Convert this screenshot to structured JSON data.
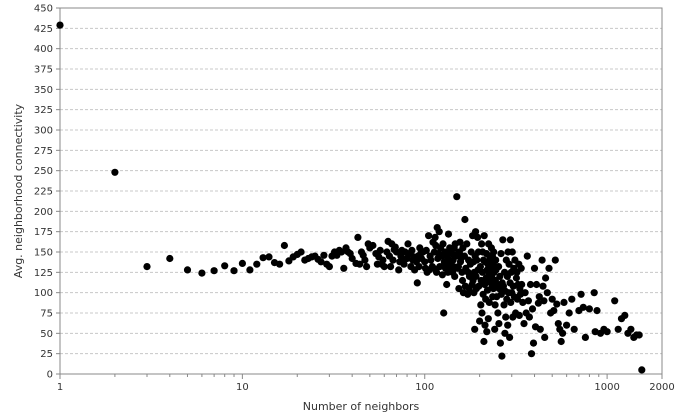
{
  "chart_data": {
    "type": "scatter",
    "title": "",
    "xlabel": "Number of neighbors",
    "ylabel": "Avg. neighborhood connectivity",
    "x_scale": "log",
    "xlim": [
      1,
      2000
    ],
    "ylim": [
      0,
      450
    ],
    "x_ticks": [
      1,
      10,
      100,
      1000,
      2000
    ],
    "y_ticks": [
      0,
      25,
      50,
      75,
      100,
      125,
      150,
      175,
      200,
      225,
      250,
      275,
      300,
      325,
      350,
      375,
      400,
      425,
      450
    ],
    "grid": "horizontal dashed",
    "legend": "none",
    "colors": {
      "point": "#000000",
      "grid": "#c8c8c8",
      "axis": "#888888",
      "background": "#ffffff"
    },
    "points": [
      [
        1,
        429
      ],
      [
        2,
        248
      ],
      [
        3,
        132
      ],
      [
        4,
        142
      ],
      [
        5,
        128
      ],
      [
        6,
        124
      ],
      [
        7,
        127
      ],
      [
        8,
        133
      ],
      [
        9,
        127
      ],
      [
        10,
        136
      ],
      [
        11,
        128
      ],
      [
        12,
        135
      ],
      [
        13,
        143
      ],
      [
        14,
        144
      ],
      [
        15,
        137
      ],
      [
        16,
        135
      ],
      [
        17,
        158
      ],
      [
        18,
        139
      ],
      [
        19,
        144
      ],
      [
        20,
        147
      ],
      [
        21,
        150
      ],
      [
        22,
        140
      ],
      [
        23,
        142
      ],
      [
        24,
        144
      ],
      [
        25,
        145
      ],
      [
        26,
        141
      ],
      [
        27,
        138
      ],
      [
        28,
        146
      ],
      [
        29,
        135
      ],
      [
        30,
        132
      ],
      [
        31,
        145
      ],
      [
        32,
        150
      ],
      [
        33,
        146
      ],
      [
        34,
        152
      ],
      [
        35,
        150
      ],
      [
        36,
        130
      ],
      [
        37,
        155
      ],
      [
        38,
        150
      ],
      [
        39,
        148
      ],
      [
        40,
        142
      ],
      [
        42,
        136
      ],
      [
        43,
        168
      ],
      [
        44,
        135
      ],
      [
        45,
        150
      ],
      [
        46,
        146
      ],
      [
        47,
        140
      ],
      [
        48,
        132
      ],
      [
        49,
        160
      ],
      [
        50,
        155
      ],
      [
        52,
        158
      ],
      [
        54,
        148
      ],
      [
        55,
        135
      ],
      [
        56,
        144
      ],
      [
        57,
        152
      ],
      [
        58,
        135
      ],
      [
        59,
        140
      ],
      [
        60,
        132
      ],
      [
        62,
        150
      ],
      [
        63,
        163
      ],
      [
        64,
        145
      ],
      [
        65,
        132
      ],
      [
        66,
        160
      ],
      [
        67,
        140
      ],
      [
        68,
        153
      ],
      [
        69,
        156
      ],
      [
        70,
        150
      ],
      [
        72,
        128
      ],
      [
        73,
        138
      ],
      [
        74,
        145
      ],
      [
        75,
        152
      ],
      [
        76,
        140
      ],
      [
        77,
        135
      ],
      [
        78,
        150
      ],
      [
        80,
        142
      ],
      [
        81,
        160
      ],
      [
        82,
        148
      ],
      [
        84,
        132
      ],
      [
        85,
        152
      ],
      [
        86,
        140
      ],
      [
        87,
        144
      ],
      [
        88,
        128
      ],
      [
        90,
        138
      ],
      [
        91,
        112
      ],
      [
        92,
        145
      ],
      [
        93,
        132
      ],
      [
        94,
        155
      ],
      [
        95,
        148
      ],
      [
        96,
        142
      ],
      [
        98,
        150
      ],
      [
        100,
        138
      ],
      [
        101,
        130
      ],
      [
        102,
        152
      ],
      [
        103,
        125
      ],
      [
        105,
        170
      ],
      [
        106,
        128
      ],
      [
        107,
        145
      ],
      [
        108,
        140
      ],
      [
        110,
        132
      ],
      [
        111,
        162
      ],
      [
        112,
        130
      ],
      [
        113,
        150
      ],
      [
        114,
        168
      ],
      [
        115,
        158
      ],
      [
        116,
        125
      ],
      [
        117,
        180
      ],
      [
        118,
        142
      ],
      [
        119,
        148
      ],
      [
        120,
        175
      ],
      [
        121,
        132
      ],
      [
        122,
        155
      ],
      [
        124,
        145
      ],
      [
        125,
        122
      ],
      [
        126,
        160
      ],
      [
        127,
        75
      ],
      [
        128,
        138
      ],
      [
        129,
        150
      ],
      [
        130,
        130
      ],
      [
        131,
        132
      ],
      [
        132,
        110
      ],
      [
        133,
        145
      ],
      [
        134,
        125
      ],
      [
        135,
        172
      ],
      [
        136,
        140
      ],
      [
        137,
        155
      ],
      [
        138,
        135
      ],
      [
        139,
        128
      ],
      [
        140,
        150
      ],
      [
        141,
        148
      ],
      [
        142,
        125
      ],
      [
        143,
        140
      ],
      [
        144,
        132
      ],
      [
        145,
        155
      ],
      [
        146,
        120
      ],
      [
        147,
        160
      ],
      [
        148,
        145
      ],
      [
        150,
        218
      ],
      [
        151,
        130
      ],
      [
        152,
        148
      ],
      [
        153,
        132
      ],
      [
        154,
        105
      ],
      [
        155,
        150
      ],
      [
        156,
        162
      ],
      [
        157,
        138
      ],
      [
        158,
        142
      ],
      [
        160,
        125
      ],
      [
        161,
        115
      ],
      [
        162,
        155
      ],
      [
        163,
        100
      ],
      [
        165,
        145
      ],
      [
        166,
        190
      ],
      [
        167,
        108
      ],
      [
        168,
        130
      ],
      [
        170,
        160
      ],
      [
        172,
        98
      ],
      [
        173,
        125
      ],
      [
        174,
        140
      ],
      [
        175,
        105
      ],
      [
        176,
        120
      ],
      [
        178,
        135
      ],
      [
        180,
        150
      ],
      [
        182,
        110
      ],
      [
        183,
        170
      ],
      [
        184,
        115
      ],
      [
        185,
        138
      ],
      [
        186,
        100
      ],
      [
        187,
        125
      ],
      [
        188,
        55
      ],
      [
        189,
        145
      ],
      [
        190,
        175
      ],
      [
        191,
        120
      ],
      [
        192,
        105
      ],
      [
        193,
        140
      ],
      [
        195,
        168
      ],
      [
        196,
        128
      ],
      [
        197,
        150
      ],
      [
        198,
        108
      ],
      [
        200,
        65
      ],
      [
        202,
        132
      ],
      [
        203,
        85
      ],
      [
        204,
        115
      ],
      [
        205,
        160
      ],
      [
        206,
        75
      ],
      [
        207,
        125
      ],
      [
        208,
        150
      ],
      [
        209,
        98
      ],
      [
        210,
        140
      ],
      [
        211,
        40
      ],
      [
        212,
        170
      ],
      [
        213,
        110
      ],
      [
        214,
        60
      ],
      [
        215,
        138
      ],
      [
        216,
        92
      ],
      [
        217,
        118
      ],
      [
        218,
        148
      ],
      [
        219,
        52
      ],
      [
        220,
        128
      ],
      [
        221,
        103
      ],
      [
        222,
        135
      ],
      [
        223,
        68
      ],
      [
        224,
        160
      ],
      [
        225,
        122
      ],
      [
        226,
        88
      ],
      [
        227,
        145
      ],
      [
        228,
        113
      ],
      [
        229,
        142
      ],
      [
        230,
        130
      ],
      [
        232,
        155
      ],
      [
        233,
        120
      ],
      [
        234,
        108
      ],
      [
        235,
        145
      ],
      [
        236,
        95
      ],
      [
        237,
        135
      ],
      [
        238,
        105
      ],
      [
        239,
        150
      ],
      [
        240,
        125
      ],
      [
        242,
        55
      ],
      [
        243,
        85
      ],
      [
        244,
        115
      ],
      [
        245,
        140
      ],
      [
        246,
        128
      ],
      [
        248,
        95
      ],
      [
        250,
        110
      ],
      [
        252,
        75
      ],
      [
        254,
        132
      ],
      [
        255,
        62
      ],
      [
        256,
        105
      ],
      [
        258,
        120
      ],
      [
        260,
        38
      ],
      [
        262,
        148
      ],
      [
        263,
        98
      ],
      [
        265,
        22
      ],
      [
        266,
        112
      ],
      [
        268,
        165
      ],
      [
        270,
        108
      ],
      [
        272,
        85
      ],
      [
        274,
        125
      ],
      [
        275,
        50
      ],
      [
        276,
        102
      ],
      [
        278,
        70
      ],
      [
        280,
        140
      ],
      [
        282,
        92
      ],
      [
        284,
        120
      ],
      [
        285,
        60
      ],
      [
        286,
        150
      ],
      [
        288,
        100
      ],
      [
        290,
        135
      ],
      [
        292,
        45
      ],
      [
        294,
        112
      ],
      [
        295,
        165
      ],
      [
        296,
        88
      ],
      [
        298,
        125
      ],
      [
        300,
        100
      ],
      [
        302,
        150
      ],
      [
        304,
        70
      ],
      [
        306,
        108
      ],
      [
        308,
        130
      ],
      [
        310,
        95
      ],
      [
        312,
        140
      ],
      [
        315,
        75
      ],
      [
        318,
        118
      ],
      [
        320,
        125
      ],
      [
        322,
        92
      ],
      [
        325,
        110
      ],
      [
        328,
        135
      ],
      [
        330,
        72
      ],
      [
        332,
        105
      ],
      [
        335,
        98
      ],
      [
        338,
        130
      ],
      [
        340,
        110
      ],
      [
        345,
        88
      ],
      [
        350,
        62
      ],
      [
        355,
        100
      ],
      [
        360,
        75
      ],
      [
        365,
        145
      ],
      [
        370,
        90
      ],
      [
        375,
        70
      ],
      [
        380,
        110
      ],
      [
        385,
        25
      ],
      [
        390,
        80
      ],
      [
        395,
        38
      ],
      [
        400,
        130
      ],
      [
        405,
        58
      ],
      [
        410,
        110
      ],
      [
        420,
        87
      ],
      [
        425,
        95
      ],
      [
        430,
        55
      ],
      [
        440,
        140
      ],
      [
        445,
        108
      ],
      [
        450,
        90
      ],
      [
        455,
        45
      ],
      [
        460,
        118
      ],
      [
        470,
        100
      ],
      [
        480,
        130
      ],
      [
        490,
        75
      ],
      [
        500,
        92
      ],
      [
        510,
        78
      ],
      [
        520,
        140
      ],
      [
        530,
        86
      ],
      [
        540,
        62
      ],
      [
        550,
        55
      ],
      [
        560,
        40
      ],
      [
        570,
        50
      ],
      [
        580,
        88
      ],
      [
        600,
        60
      ],
      [
        620,
        75
      ],
      [
        640,
        92
      ],
      [
        660,
        55
      ],
      [
        700,
        78
      ],
      [
        720,
        98
      ],
      [
        740,
        82
      ],
      [
        760,
        45
      ],
      [
        800,
        80
      ],
      [
        850,
        100
      ],
      [
        860,
        52
      ],
      [
        880,
        78
      ],
      [
        920,
        50
      ],
      [
        960,
        55
      ],
      [
        1000,
        52
      ],
      [
        1100,
        90
      ],
      [
        1150,
        55
      ],
      [
        1200,
        68
      ],
      [
        1250,
        72
      ],
      [
        1300,
        50
      ],
      [
        1350,
        55
      ],
      [
        1400,
        45
      ],
      [
        1450,
        48
      ],
      [
        1500,
        48
      ],
      [
        1550,
        5
      ]
    ]
  }
}
